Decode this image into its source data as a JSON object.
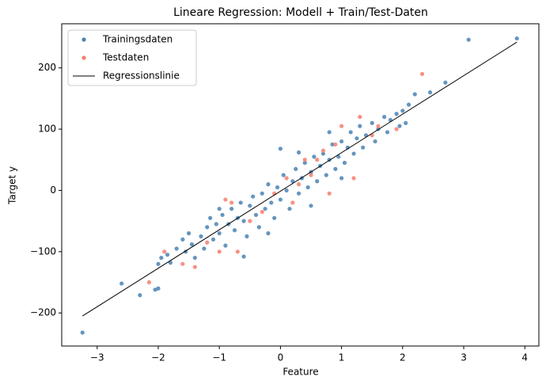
{
  "chart_data": {
    "type": "scatter",
    "title": "Lineare Regression: Modell + Train/Test-Daten",
    "x_label": "Feature",
    "y_label": "Target y",
    "xlim": [
      -3.58,
      4.23
    ],
    "ylim": [
      -254,
      272
    ],
    "xticks": [
      {
        "value": -3,
        "label": "−3"
      },
      {
        "value": -2,
        "label": "−2"
      },
      {
        "value": -1,
        "label": "−1"
      },
      0,
      1,
      2,
      3,
      4
    ],
    "yticks": [
      {
        "value": -200,
        "label": "−200"
      },
      {
        "value": -100,
        "label": "−100"
      },
      0,
      100,
      200
    ],
    "legend": "upper-left",
    "series": [
      {
        "name": "Trainingsdaten",
        "kind": "points",
        "color": "#4a82b4",
        "x": [
          -3.24,
          -2.6,
          -2.3,
          -2.05,
          -2.0,
          -2.0,
          -1.95,
          -1.85,
          -1.8,
          -1.7,
          -1.6,
          -1.55,
          -1.5,
          -1.45,
          -1.4,
          -1.3,
          -1.25,
          -1.2,
          -1.15,
          -1.1,
          -1.05,
          -1.0,
          -0.95,
          -0.9,
          -0.85,
          -0.8,
          -0.75,
          -0.7,
          -0.65,
          -0.6,
          -0.55,
          -0.5,
          -0.45,
          -0.4,
          -0.35,
          -0.3,
          -0.25,
          -0.2,
          -0.15,
          -0.1,
          -0.05,
          0.0,
          0.05,
          0.1,
          0.15,
          0.2,
          0.25,
          0.3,
          0.35,
          0.4,
          0.45,
          0.5,
          0.55,
          0.6,
          0.65,
          0.7,
          0.75,
          0.8,
          0.85,
          0.9,
          0.95,
          1.0,
          1.05,
          1.1,
          1.15,
          1.2,
          1.25,
          1.3,
          1.35,
          1.4,
          1.5,
          1.55,
          1.6,
          1.7,
          1.75,
          1.8,
          1.9,
          1.95,
          2.0,
          2.05,
          2.1,
          2.2,
          2.45,
          2.7,
          3.08,
          3.87,
          0.0,
          -0.2,
          0.3,
          -0.6,
          1.0,
          0.5,
          -1.0,
          0.8
        ],
        "values": [
          -232,
          -152,
          -171,
          -162,
          -160,
          -120,
          -110,
          -105,
          -118,
          -95,
          -80,
          -100,
          -70,
          -88,
          -110,
          -75,
          -95,
          -60,
          -45,
          -80,
          -55,
          -70,
          -40,
          -90,
          -55,
          -30,
          -65,
          -45,
          -20,
          -50,
          -75,
          -25,
          -10,
          -40,
          -60,
          -5,
          -30,
          10,
          -20,
          -45,
          5,
          -15,
          25,
          0,
          -30,
          15,
          35,
          -5,
          20,
          45,
          5,
          30,
          55,
          15,
          40,
          60,
          25,
          50,
          75,
          35,
          55,
          80,
          45,
          70,
          95,
          60,
          85,
          105,
          70,
          90,
          110,
          80,
          100,
          120,
          95,
          115,
          125,
          105,
          130,
          110,
          140,
          157,
          160,
          176,
          246,
          248,
          68,
          -70,
          62,
          -108,
          20,
          -25,
          -30,
          95
        ]
      },
      {
        "name": "Testdaten",
        "kind": "points",
        "color": "#f47f6e",
        "x": [
          -2.15,
          -1.9,
          -1.6,
          -1.4,
          -1.2,
          -1.0,
          -0.8,
          -0.7,
          -0.5,
          -0.3,
          -0.1,
          0.1,
          0.2,
          0.3,
          0.5,
          0.6,
          0.7,
          0.9,
          1.0,
          1.2,
          1.3,
          1.5,
          1.6,
          1.9,
          2.32,
          0.8,
          -0.9,
          0.4
        ],
        "values": [
          -150,
          -100,
          -120,
          -125,
          -85,
          -100,
          -20,
          -100,
          -50,
          -35,
          -5,
          20,
          -20,
          10,
          25,
          50,
          65,
          75,
          105,
          20,
          120,
          90,
          105,
          100,
          190,
          -5,
          -15,
          50
        ]
      },
      {
        "name": "Regressionslinie",
        "kind": "line",
        "color": "#000000",
        "x": [
          -3.24,
          3.87
        ],
        "values": [
          -205,
          242
        ]
      }
    ]
  }
}
